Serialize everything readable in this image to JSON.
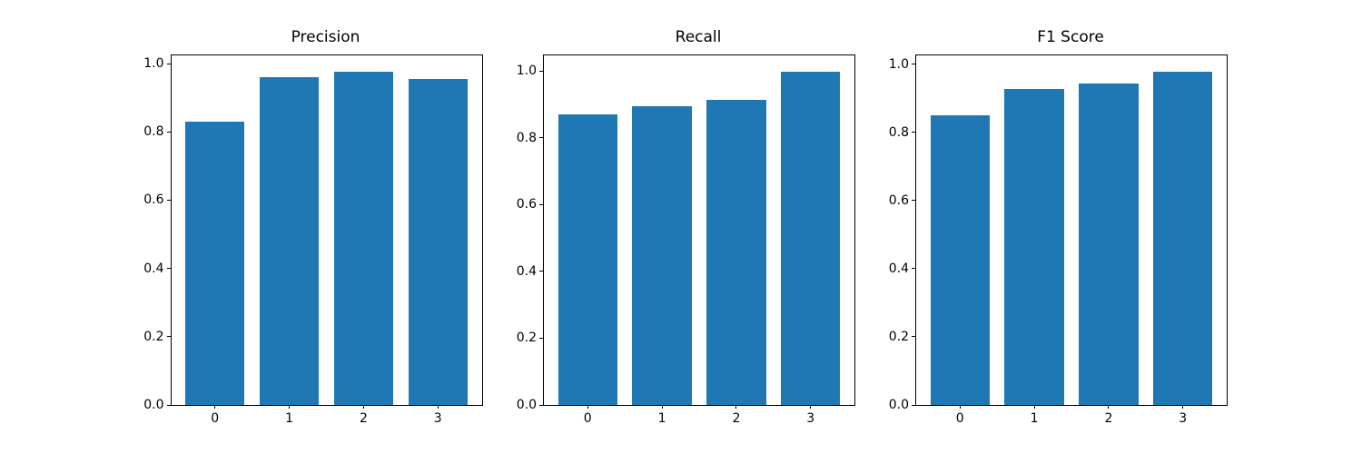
{
  "figure": {
    "background_color": "#ffffff",
    "bar_color": "#1f77b4",
    "spine_color": "#000000",
    "text_color": "#000000"
  },
  "chart_data": [
    {
      "type": "bar",
      "title": "Precision",
      "categories": [
        "0",
        "1",
        "2",
        "3"
      ],
      "values": [
        0.83,
        0.96,
        0.975,
        0.955
      ],
      "xlabel": "",
      "ylabel": "",
      "ytick_labels": [
        "0.0",
        "0.2",
        "0.4",
        "0.6",
        "0.8",
        "1.0"
      ],
      "yticks": [
        0.0,
        0.2,
        0.4,
        0.6,
        0.8,
        1.0
      ],
      "ylim": [
        0,
        1.024
      ],
      "xlim": [
        -0.59,
        3.59
      ],
      "bar_width": 0.8,
      "grid": false,
      "legend": false
    },
    {
      "type": "bar",
      "title": "Recall",
      "categories": [
        "0",
        "1",
        "2",
        "3"
      ],
      "values": [
        0.87,
        0.895,
        0.915,
        0.997
      ],
      "xlabel": "",
      "ylabel": "",
      "ytick_labels": [
        "0.0",
        "0.2",
        "0.4",
        "0.6",
        "0.8",
        "1.0"
      ],
      "yticks": [
        0.0,
        0.2,
        0.4,
        0.6,
        0.8,
        1.0
      ],
      "ylim": [
        0,
        1.047
      ],
      "xlim": [
        -0.59,
        3.59
      ],
      "bar_width": 0.8,
      "grid": false,
      "legend": false
    },
    {
      "type": "bar",
      "title": "F1 Score",
      "categories": [
        "0",
        "1",
        "2",
        "3"
      ],
      "values": [
        0.85,
        0.927,
        0.944,
        0.977
      ],
      "xlabel": "",
      "ylabel": "",
      "ytick_labels": [
        "0.0",
        "0.2",
        "0.4",
        "0.6",
        "0.8",
        "1.0"
      ],
      "yticks": [
        0.0,
        0.2,
        0.4,
        0.6,
        0.8,
        1.0
      ],
      "ylim": [
        0,
        1.026
      ],
      "xlim": [
        -0.59,
        3.59
      ],
      "bar_width": 0.8,
      "grid": false,
      "legend": false
    }
  ]
}
